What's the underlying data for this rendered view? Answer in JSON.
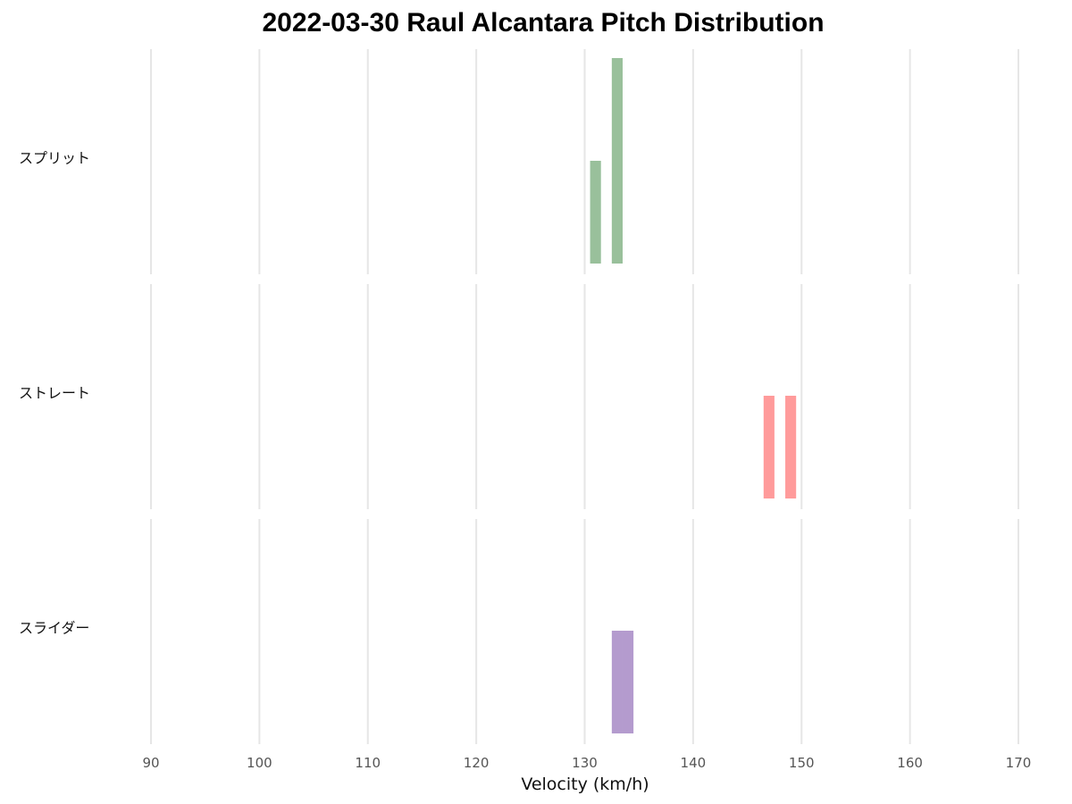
{
  "chart_data": {
    "type": "bar",
    "title": "2022-03-30 Raul Alcantara Pitch Distribution",
    "xlabel": "Velocity (km/h)",
    "xlim": [
      90,
      170
    ],
    "x_ticks": [
      90,
      100,
      110,
      120,
      130,
      140,
      150,
      160,
      170
    ],
    "grid": true,
    "bin_width_kmh": 1,
    "panels": [
      {
        "name": "スプリット",
        "color": "#99c09b",
        "bars": [
          {
            "x": 131,
            "count": 1
          },
          {
            "x": 133,
            "count": 2
          }
        ]
      },
      {
        "name": "ストレート",
        "color": "#ff9b9b",
        "bars": [
          {
            "x": 147,
            "count": 1
          },
          {
            "x": 149,
            "count": 1
          }
        ]
      },
      {
        "name": "スライダー",
        "color": "#b49bce",
        "bars": [
          {
            "x": 133,
            "count": 1
          },
          {
            "x": 134,
            "count": 1
          }
        ]
      }
    ]
  }
}
